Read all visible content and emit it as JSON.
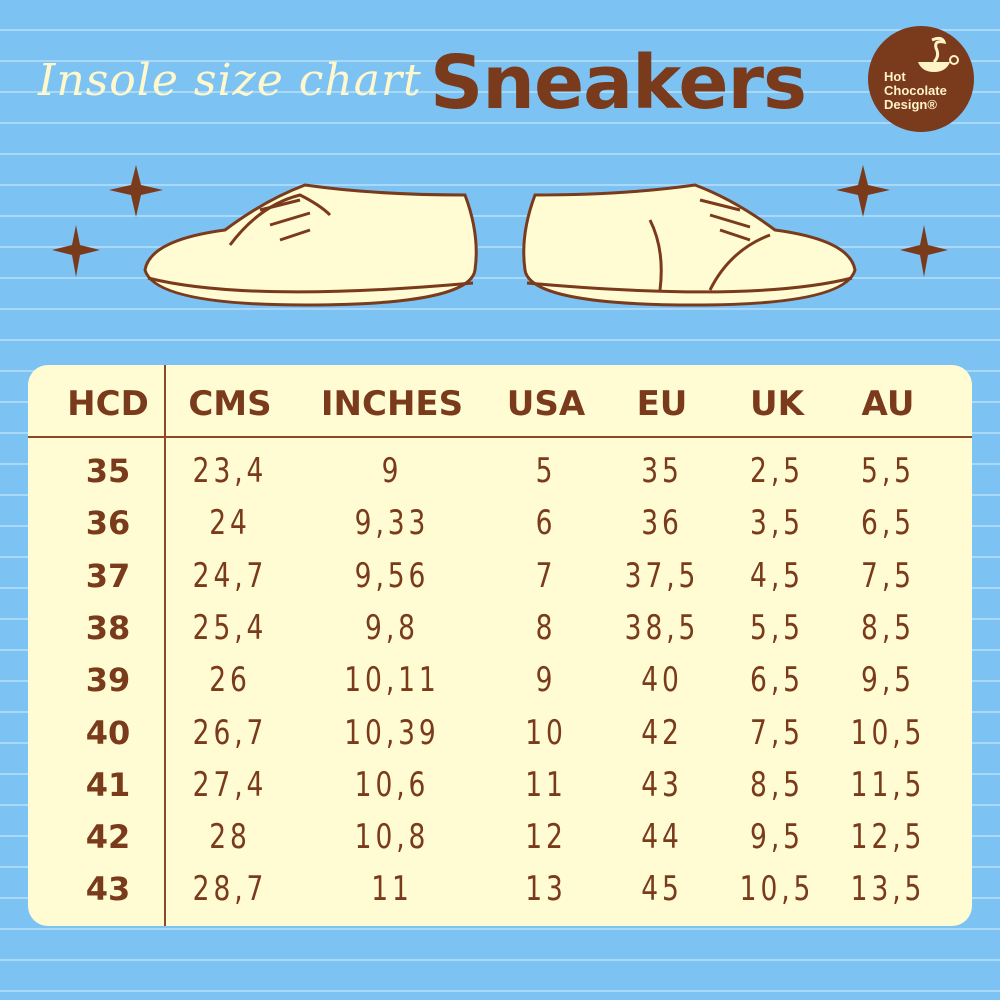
{
  "header": {
    "script_title": "Insole size chart",
    "main_title": "Sneakers"
  },
  "logo": {
    "lines": [
      "Hot",
      "Chocolate",
      "Design®"
    ]
  },
  "colors": {
    "background": "#7cc3f4",
    "brown": "#7a3a1c",
    "cream": "#fffbd2"
  },
  "icons": [
    "star-icon",
    "left-sneaker-illustration",
    "right-sneaker-illustration",
    "coffee-cup-logo-icon"
  ],
  "table": {
    "columns": [
      "HCD",
      "CMS",
      "INCHES",
      "USA",
      "EU",
      "UK",
      "AU"
    ],
    "rows": [
      [
        "35",
        "23,4",
        "9",
        "5",
        "35",
        "2,5",
        "5,5"
      ],
      [
        "36",
        "24",
        "9,33",
        "6",
        "36",
        "3,5",
        "6,5"
      ],
      [
        "37",
        "24,7",
        "9,56",
        "7",
        "37,5",
        "4,5",
        "7,5"
      ],
      [
        "38",
        "25,4",
        "9,8",
        "8",
        "38,5",
        "5,5",
        "8,5"
      ],
      [
        "39",
        "26",
        "10,11",
        "9",
        "40",
        "6,5",
        "9,5"
      ],
      [
        "40",
        "26,7",
        "10,39",
        "10",
        "42",
        "7,5",
        "10,5"
      ],
      [
        "41",
        "27,4",
        "10,6",
        "11",
        "43",
        "8,5",
        "11,5"
      ],
      [
        "42",
        "28",
        "10,8",
        "12",
        "44",
        "9,5",
        "12,5"
      ],
      [
        "43",
        "28,7",
        "11",
        "13",
        "45",
        "10,5",
        "13,5"
      ]
    ]
  }
}
